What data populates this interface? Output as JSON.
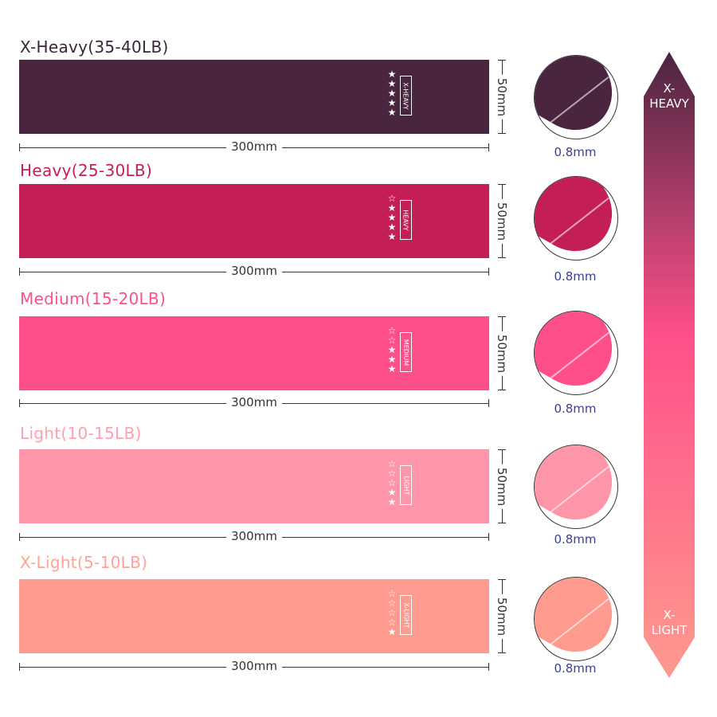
{
  "bands": [
    {
      "title": "X-Heavy(35-40LB)",
      "tag": "X-HEAVY",
      "stars_filled": 5,
      "stars_total": 5,
      "length": "300mm",
      "width": "50mm",
      "thickness": "0.8mm",
      "color": "#4a2540",
      "title_color": "#3b2637"
    },
    {
      "title": "Heavy(25-30LB)",
      "tag": "HEAVY",
      "stars_filled": 4,
      "stars_total": 5,
      "length": "300mm",
      "width": "50mm",
      "thickness": "0.8mm",
      "color": "#c41f55",
      "title_color": "#c41f55"
    },
    {
      "title": "Medium(15-20LB)",
      "tag": "MEDIUM",
      "stars_filled": 3,
      "stars_total": 5,
      "length": "300mm",
      "width": "50mm",
      "thickness": "0.8mm",
      "color": "#ff4f8a",
      "title_color": "#ff4f8a"
    },
    {
      "title": "Light(10-15LB)",
      "tag": "LIGHT",
      "stars_filled": 2,
      "stars_total": 5,
      "length": "300mm",
      "width": "50mm",
      "thickness": "0.8mm",
      "color": "#ff95a8",
      "title_color": "#ff9fb0"
    },
    {
      "title": "X-Light(5-10LB)",
      "tag": "X-LIGHT",
      "stars_filled": 1,
      "stars_total": 5,
      "length": "300mm",
      "width": "50mm",
      "thickness": "0.8mm",
      "color": "#ff9a8e",
      "title_color": "#ffa396"
    }
  ],
  "scale": {
    "top_label": "X-\nHEAVY",
    "bottom_label": "X-\nLIGHT",
    "top_color": "#4a2540",
    "mid_color": "#ff4f8a",
    "bottom_color": "#ff9a8e"
  }
}
